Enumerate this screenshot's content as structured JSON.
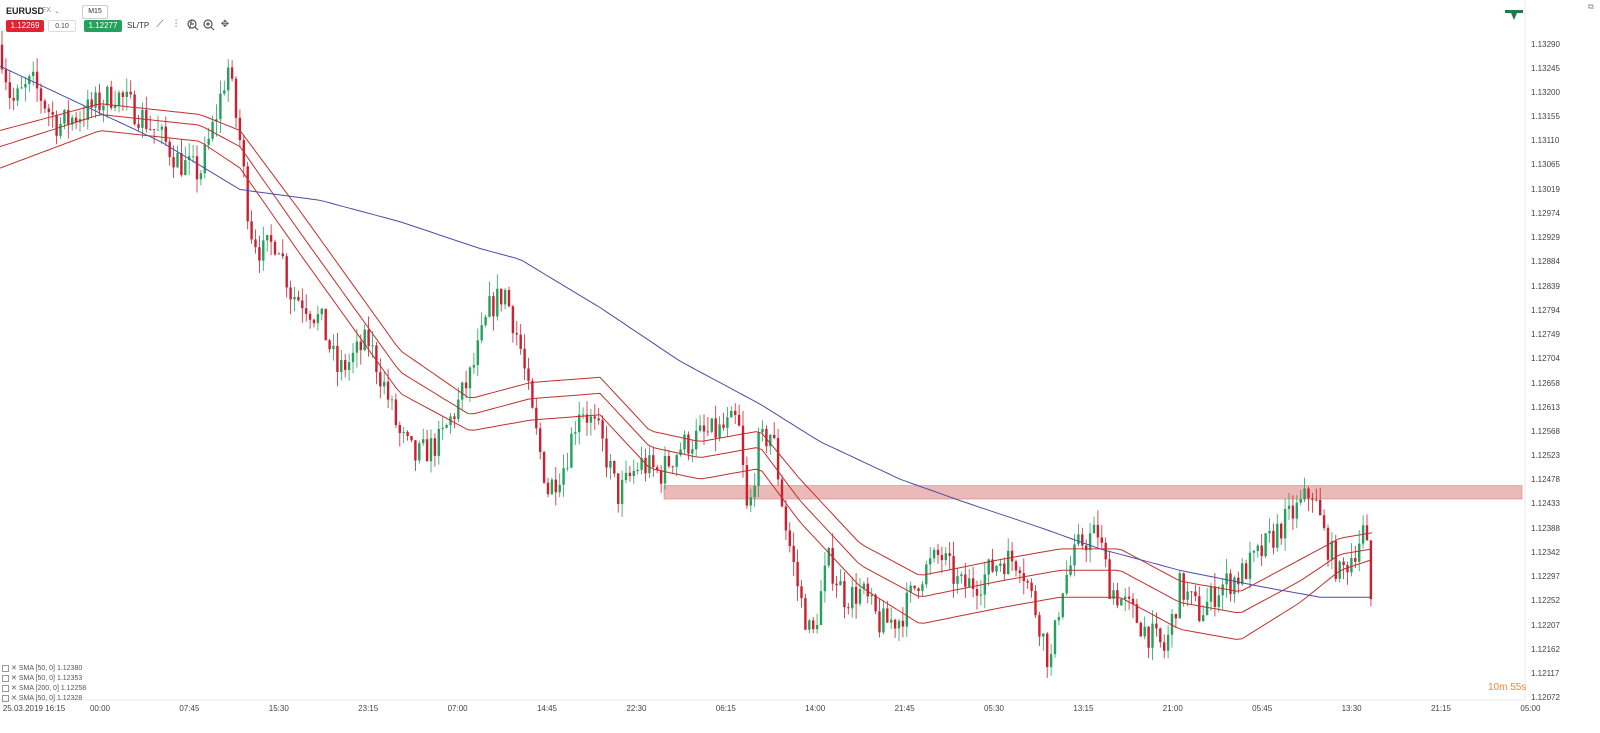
{
  "header": {
    "symbol": "EURUSD",
    "market": "FX",
    "timeframe": "M15",
    "bid": "1.12269",
    "spread": "0.10",
    "ask": "1.12277",
    "sltp_label": "SL/TP"
  },
  "tools": [
    "line-chart-icon",
    "bar-chart-icon",
    "indicator-icon",
    "zoom-out-icon",
    "zoom-in-icon",
    "crosshair-icon"
  ],
  "timer": "10m 55s",
  "colors": {
    "bull": "#25a05d",
    "bear": "#cc1f2f",
    "sma_red": "#c0302f",
    "sma_blue": "#4b4da8",
    "zone": "#e08a8a"
  },
  "legend": [
    "SMA [50, 0] 1.12380",
    "SMA [50, 0] 1.12353",
    "SMA [200, 0] 1.12258",
    "SMA [50, 0] 1.12328"
  ],
  "chart_data": {
    "type": "candlestick",
    "symbol": "EURUSD",
    "interval": "M15",
    "ylim": [
      1.12072,
      1.1331
    ],
    "y_ticks": [
      "1.13290",
      "1.13245",
      "1.13200",
      "1.13155",
      "1.13110",
      "1.13065",
      "1.13019",
      "1.12974",
      "1.12929",
      "1.12884",
      "1.12839",
      "1.12794",
      "1.12749",
      "1.12704",
      "1.12658",
      "1.12613",
      "1.12568",
      "1.12523",
      "1.12478",
      "1.12433",
      "1.12388",
      "1.12342",
      "1.12297",
      "1.12252",
      "1.12207",
      "1.12162",
      "1.12117",
      "1.12072"
    ],
    "x_ticks": [
      "25.03.2019 16:15",
      "00:00",
      "07:45",
      "15:30",
      "23:15",
      "07:00",
      "14:45",
      "22:30",
      "06:15",
      "14:00",
      "21:45",
      "05:30",
      "13:15",
      "21:00",
      "05:45",
      "13:30",
      "21:15",
      "05:00"
    ],
    "zone": {
      "low": 1.12443,
      "high": 1.12468
    },
    "trend_path": [
      [
        0,
        1.1329
      ],
      [
        12,
        1.1318
      ],
      [
        32,
        1.1322
      ],
      [
        58,
        1.1314
      ],
      [
        90,
        1.1317
      ],
      [
        115,
        1.132
      ],
      [
        140,
        1.1316
      ],
      [
        160,
        1.1312
      ],
      [
        180,
        1.1307
      ],
      [
        200,
        1.1305
      ],
      [
        215,
        1.1315
      ],
      [
        228,
        1.1325
      ],
      [
        240,
        1.1311
      ],
      [
        250,
        1.1295
      ],
      [
        262,
        1.129
      ],
      [
        278,
        1.1293
      ],
      [
        290,
        1.1283
      ],
      [
        305,
        1.1281
      ],
      [
        322,
        1.1277
      ],
      [
        338,
        1.1268
      ],
      [
        350,
        1.127
      ],
      [
        368,
        1.1274
      ],
      [
        385,
        1.1265
      ],
      [
        400,
        1.1256
      ],
      [
        415,
        1.1252
      ],
      [
        440,
        1.1255
      ],
      [
        458,
        1.1262
      ],
      [
        472,
        1.1268
      ],
      [
        490,
        1.128
      ],
      [
        505,
        1.1283
      ],
      [
        520,
        1.1273
      ],
      [
        532,
        1.126
      ],
      [
        548,
        1.1246
      ],
      [
        565,
        1.1251
      ],
      [
        580,
        1.1262
      ],
      [
        600,
        1.1256
      ],
      [
        618,
        1.1245
      ],
      [
        640,
        1.1251
      ],
      [
        660,
        1.1249
      ],
      [
        680,
        1.1254
      ],
      [
        700,
        1.1256
      ],
      [
        720,
        1.1257
      ],
      [
        738,
        1.1259
      ],
      [
        748,
        1.124
      ],
      [
        758,
        1.1254
      ],
      [
        772,
        1.1257
      ],
      [
        785,
        1.124
      ],
      [
        800,
        1.1226
      ],
      [
        812,
        1.1218
      ],
      [
        828,
        1.1233
      ],
      [
        845,
        1.1226
      ],
      [
        862,
        1.1227
      ],
      [
        880,
        1.1221
      ],
      [
        900,
        1.1222
      ],
      [
        920,
        1.123
      ],
      [
        940,
        1.1234
      ],
      [
        960,
        1.1228
      ],
      [
        980,
        1.1229
      ],
      [
        1000,
        1.1233
      ],
      [
        1020,
        1.1233
      ],
      [
        1040,
        1.1221
      ],
      [
        1050,
        1.1213
      ],
      [
        1062,
        1.1228
      ],
      [
        1080,
        1.1236
      ],
      [
        1098,
        1.1238
      ],
      [
        1110,
        1.1228
      ],
      [
        1128,
        1.1224
      ],
      [
        1145,
        1.122
      ],
      [
        1165,
        1.1216
      ],
      [
        1180,
        1.1228
      ],
      [
        1200,
        1.1223
      ],
      [
        1220,
        1.1228
      ],
      [
        1240,
        1.123
      ],
      [
        1260,
        1.1234
      ],
      [
        1280,
        1.1239
      ],
      [
        1300,
        1.1243
      ],
      [
        1312,
        1.1246
      ],
      [
        1325,
        1.1237
      ],
      [
        1340,
        1.123
      ],
      [
        1355,
        1.1235
      ],
      [
        1365,
        1.1239
      ],
      [
        1372,
        1.1223
      ]
    ],
    "sma_red": [
      {
        "name": "SMA [50, 0] 1.12380",
        "points": [
          [
            0,
            1.1313
          ],
          [
            100,
            1.1318
          ],
          [
            200,
            1.1316
          ],
          [
            240,
            1.1313
          ],
          [
            300,
            1.1298
          ],
          [
            350,
            1.1285
          ],
          [
            400,
            1.1272
          ],
          [
            470,
            1.1263
          ],
          [
            530,
            1.1266
          ],
          [
            600,
            1.1267
          ],
          [
            650,
            1.1257
          ],
          [
            700,
            1.1255
          ],
          [
            760,
            1.1257
          ],
          [
            800,
            1.1248
          ],
          [
            860,
            1.1236
          ],
          [
            920,
            1.123
          ],
          [
            1000,
            1.1233
          ],
          [
            1060,
            1.1235
          ],
          [
            1120,
            1.1235
          ],
          [
            1180,
            1.1229
          ],
          [
            1240,
            1.1227
          ],
          [
            1300,
            1.1233
          ],
          [
            1340,
            1.1237
          ],
          [
            1372,
            1.1238
          ]
        ]
      },
      {
        "name": "SMA [50, 0] 1.12353",
        "points": [
          [
            0,
            1.131
          ],
          [
            100,
            1.1316
          ],
          [
            200,
            1.1314
          ],
          [
            240,
            1.131
          ],
          [
            300,
            1.1294
          ],
          [
            350,
            1.1281
          ],
          [
            400,
            1.1268
          ],
          [
            470,
            1.126
          ],
          [
            530,
            1.1263
          ],
          [
            600,
            1.1264
          ],
          [
            650,
            1.1254
          ],
          [
            700,
            1.1252
          ],
          [
            760,
            1.1254
          ],
          [
            800,
            1.1244
          ],
          [
            860,
            1.1232
          ],
          [
            920,
            1.1226
          ],
          [
            1000,
            1.1229
          ],
          [
            1060,
            1.1231
          ],
          [
            1120,
            1.1231
          ],
          [
            1180,
            1.1225
          ],
          [
            1240,
            1.1223
          ],
          [
            1300,
            1.1229
          ],
          [
            1340,
            1.1234
          ],
          [
            1372,
            1.1235
          ]
        ]
      },
      {
        "name": "SMA [50, 0] 1.12328",
        "points": [
          [
            0,
            1.1306
          ],
          [
            100,
            1.1313
          ],
          [
            200,
            1.1311
          ],
          [
            240,
            1.1306
          ],
          [
            300,
            1.129
          ],
          [
            350,
            1.1277
          ],
          [
            400,
            1.1264
          ],
          [
            470,
            1.1257
          ],
          [
            530,
            1.1259
          ],
          [
            600,
            1.126
          ],
          [
            650,
            1.125
          ],
          [
            700,
            1.1248
          ],
          [
            760,
            1.125
          ],
          [
            800,
            1.124
          ],
          [
            860,
            1.1228
          ],
          [
            920,
            1.1221
          ],
          [
            1000,
            1.1224
          ],
          [
            1060,
            1.1226
          ],
          [
            1120,
            1.1226
          ],
          [
            1180,
            1.122
          ],
          [
            1240,
            1.1218
          ],
          [
            1300,
            1.1225
          ],
          [
            1340,
            1.1231
          ],
          [
            1372,
            1.1233
          ]
        ]
      }
    ],
    "sma_blue": {
      "name": "SMA [200, 0] 1.12258",
      "points": [
        [
          0,
          1.1325
        ],
        [
          80,
          1.1318
        ],
        [
          160,
          1.1311
        ],
        [
          240,
          1.1302
        ],
        [
          320,
          1.13
        ],
        [
          400,
          1.1296
        ],
        [
          480,
          1.1291
        ],
        [
          520,
          1.1289
        ],
        [
          600,
          1.128
        ],
        [
          680,
          1.127
        ],
        [
          760,
          1.1262
        ],
        [
          820,
          1.1255
        ],
        [
          900,
          1.1248
        ],
        [
          960,
          1.1244
        ],
        [
          1040,
          1.1239
        ],
        [
          1100,
          1.1235
        ],
        [
          1180,
          1.1231
        ],
        [
          1260,
          1.1228
        ],
        [
          1320,
          1.1226
        ],
        [
          1372,
          1.1226
        ]
      ]
    }
  }
}
